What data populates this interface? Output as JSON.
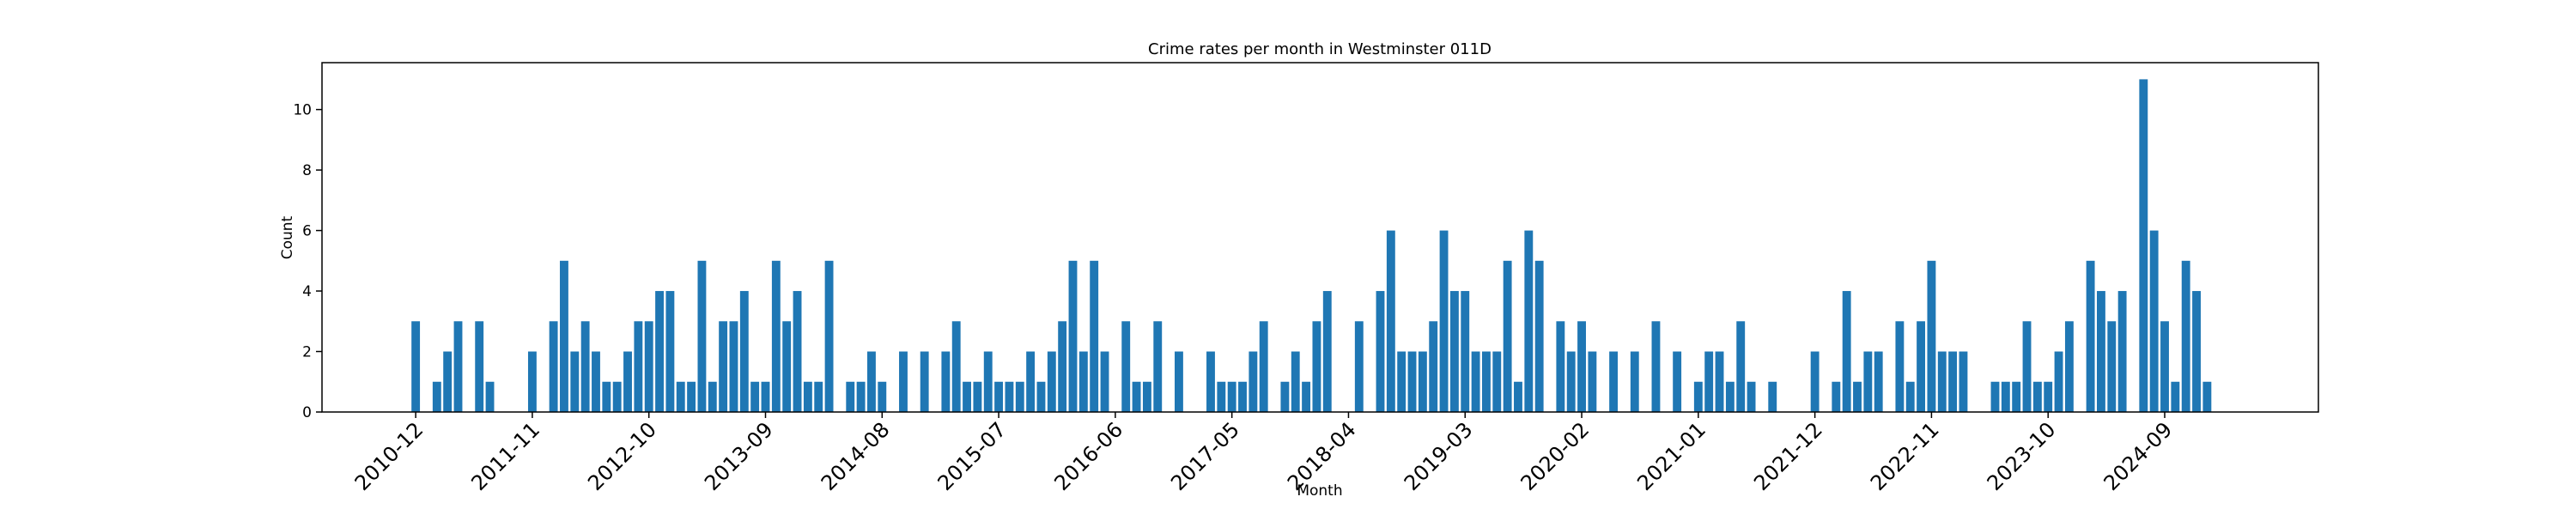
{
  "chart_data": {
    "type": "bar",
    "title": "Crime rates per month in Westminster 011D",
    "x_label": "Month",
    "y_label": "Count",
    "color": "#1f77b4",
    "categories": [
      "2010-12",
      null,
      null,
      null,
      null,
      null,
      null,
      null,
      null,
      null,
      null,
      "2011-11",
      null,
      null,
      null,
      null,
      null,
      null,
      null,
      null,
      null,
      null,
      "2012-10",
      null,
      null,
      null,
      null,
      null,
      null,
      null,
      null,
      null,
      null,
      "2013-09",
      null,
      null,
      null,
      null,
      null,
      null,
      null,
      null,
      null,
      null,
      "2014-08",
      null,
      null,
      null,
      null,
      null,
      null,
      null,
      null,
      null,
      null,
      "2015-07",
      null,
      null,
      null,
      null,
      null,
      null,
      null,
      null,
      null,
      null,
      "2016-06",
      null,
      null,
      null,
      null,
      null,
      null,
      null,
      null,
      null,
      null,
      "2017-05",
      null,
      null,
      null,
      null,
      null,
      null,
      null,
      null,
      null,
      null,
      "2018-04",
      null,
      null,
      null,
      null,
      null,
      null,
      null,
      null,
      null,
      null,
      "2019-03",
      null,
      null,
      null,
      null,
      null,
      null,
      null,
      null,
      null,
      null,
      "2020-02",
      null,
      null,
      null,
      null,
      null,
      null,
      null,
      null,
      null,
      null,
      "2021-01",
      null,
      null,
      null,
      null,
      null,
      null,
      null,
      null,
      null,
      null,
      "2021-12",
      null,
      null,
      null,
      null,
      null,
      null,
      null,
      null,
      null,
      null,
      "2022-11",
      null,
      null,
      null,
      null,
      null,
      null,
      null,
      null,
      null,
      null,
      "2023-10",
      null,
      null,
      null,
      null,
      null,
      null,
      null,
      null,
      null,
      null,
      "2024-09",
      null,
      null,
      null,
      null
    ],
    "values": [
      3,
      0,
      1,
      2,
      3,
      0,
      3,
      1,
      0,
      0,
      0,
      2,
      0,
      3,
      5,
      2,
      3,
      2,
      1,
      1,
      2,
      3,
      3,
      4,
      4,
      1,
      1,
      5,
      1,
      3,
      3,
      4,
      1,
      1,
      5,
      3,
      4,
      1,
      1,
      5,
      0,
      1,
      1,
      2,
      1,
      0,
      2,
      0,
      2,
      0,
      2,
      3,
      1,
      1,
      2,
      1,
      1,
      1,
      2,
      1,
      2,
      3,
      5,
      2,
      5,
      2,
      0,
      3,
      1,
      1,
      3,
      0,
      2,
      0,
      0,
      2,
      1,
      1,
      1,
      2,
      3,
      0,
      1,
      2,
      1,
      3,
      4,
      0,
      0,
      3,
      0,
      4,
      6,
      2,
      2,
      2,
      3,
      6,
      4,
      4,
      2,
      2,
      2,
      5,
      1,
      6,
      5,
      0,
      3,
      2,
      3,
      2,
      0,
      2,
      0,
      2,
      0,
      3,
      0,
      2,
      0,
      1,
      2,
      2,
      1,
      3,
      1,
      0,
      1,
      0,
      0,
      0,
      2,
      0,
      1,
      4,
      1,
      2,
      2,
      0,
      3,
      1,
      3,
      5,
      2,
      2,
      2,
      0,
      0,
      1,
      1,
      1,
      3,
      1,
      1,
      2,
      3,
      0,
      5,
      4,
      3,
      4,
      0,
      11,
      6,
      3,
      1,
      5,
      4,
      1
    ],
    "ylim": [
      0,
      11.55
    ],
    "yticks": [
      0,
      2,
      4,
      6,
      8,
      10
    ]
  }
}
